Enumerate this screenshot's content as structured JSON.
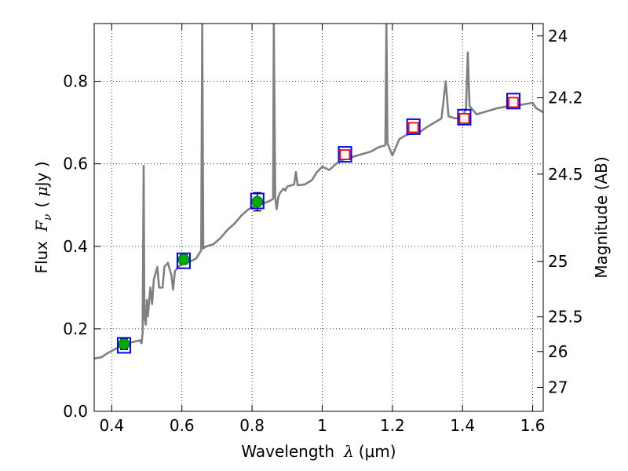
{
  "chart_data": {
    "type": "scatter",
    "xlabel": {
      "main": "Wavelength",
      "symbol": "λ",
      "unit": "(μm)"
    },
    "ylabel": {
      "main": "Flux",
      "symbol": "F",
      "sub": "ν",
      "unit_open": "( ",
      "unit_mu": "μ",
      "unit_rest": "Jy )"
    },
    "y2label": "Magnitude (AB)",
    "xlim": [
      0.35,
      1.63
    ],
    "ylim": [
      0.0,
      0.94
    ],
    "x_ticks": [
      0.4,
      0.6,
      0.8,
      1.0,
      1.2,
      1.4,
      1.6
    ],
    "x_tick_labels": [
      "0.4",
      "0.6",
      "0.8",
      "1",
      "1.2",
      "1.4",
      "1.6"
    ],
    "y_ticks": [
      0.0,
      0.2,
      0.4,
      0.6,
      0.8
    ],
    "y_tick_labels": [
      "0.0",
      "0.2",
      "0.4",
      "0.6",
      "0.8"
    ],
    "mag_ticks": [
      {
        "mag": "24",
        "flux": 0.91
      },
      {
        "mag": "24.2",
        "flux": 0.76
      },
      {
        "mag": "24.5",
        "flux": 0.575
      },
      {
        "mag": "25",
        "flux": 0.363
      },
      {
        "mag": "25.5",
        "flux": 0.229
      },
      {
        "mag": "26",
        "flux": 0.145
      },
      {
        "mag": "27",
        "flux": 0.058
      }
    ],
    "grid": true,
    "colors": {
      "spectrum": "#808080",
      "observed": "#00aa00",
      "model_box": "#0000ff",
      "upper": "#ff0000",
      "errorbar": "#000000"
    },
    "spectrum": [
      [
        0.35,
        0.128
      ],
      [
        0.37,
        0.131
      ],
      [
        0.39,
        0.142
      ],
      [
        0.41,
        0.151
      ],
      [
        0.43,
        0.16
      ],
      [
        0.45,
        0.166
      ],
      [
        0.47,
        0.17
      ],
      [
        0.48,
        0.172
      ],
      [
        0.485,
        0.165
      ],
      [
        0.488,
        0.19
      ],
      [
        0.491,
        0.595
      ],
      [
        0.493,
        0.23
      ],
      [
        0.497,
        0.21
      ],
      [
        0.5,
        0.27
      ],
      [
        0.503,
        0.23
      ],
      [
        0.51,
        0.3
      ],
      [
        0.515,
        0.26
      ],
      [
        0.52,
        0.32
      ],
      [
        0.53,
        0.35
      ],
      [
        0.535,
        0.3
      ],
      [
        0.545,
        0.3
      ],
      [
        0.55,
        0.35
      ],
      [
        0.56,
        0.36
      ],
      [
        0.57,
        0.33
      ],
      [
        0.575,
        0.295
      ],
      [
        0.58,
        0.34
      ],
      [
        0.59,
        0.35
      ],
      [
        0.6,
        0.358
      ],
      [
        0.62,
        0.362
      ],
      [
        0.64,
        0.37
      ],
      [
        0.655,
        0.39
      ],
      [
        0.658,
        0.94
      ],
      [
        0.661,
        0.395
      ],
      [
        0.67,
        0.4
      ],
      [
        0.69,
        0.405
      ],
      [
        0.71,
        0.42
      ],
      [
        0.73,
        0.44
      ],
      [
        0.75,
        0.455
      ],
      [
        0.77,
        0.475
      ],
      [
        0.79,
        0.49
      ],
      [
        0.81,
        0.498
      ],
      [
        0.83,
        0.503
      ],
      [
        0.85,
        0.51
      ],
      [
        0.86,
        0.515
      ],
      [
        0.862,
        0.94
      ],
      [
        0.866,
        0.52
      ],
      [
        0.87,
        0.49
      ],
      [
        0.875,
        0.52
      ],
      [
        0.88,
        0.53
      ],
      [
        0.89,
        0.54
      ],
      [
        0.895,
        0.535
      ],
      [
        0.9,
        0.545
      ],
      [
        0.92,
        0.55
      ],
      [
        0.925,
        0.58
      ],
      [
        0.93,
        0.548
      ],
      [
        0.95,
        0.55
      ],
      [
        0.97,
        0.56
      ],
      [
        0.985,
        0.58
      ],
      [
        1.0,
        0.593
      ],
      [
        1.02,
        0.585
      ],
      [
        1.04,
        0.6
      ],
      [
        1.06,
        0.61
      ],
      [
        1.08,
        0.615
      ],
      [
        1.1,
        0.62
      ],
      [
        1.12,
        0.625
      ],
      [
        1.14,
        0.63
      ],
      [
        1.16,
        0.64
      ],
      [
        1.18,
        0.645
      ],
      [
        1.183,
        0.94
      ],
      [
        1.186,
        0.65
      ],
      [
        1.2,
        0.62
      ],
      [
        1.21,
        0.64
      ],
      [
        1.22,
        0.66
      ],
      [
        1.24,
        0.67
      ],
      [
        1.26,
        0.675
      ],
      [
        1.28,
        0.678
      ],
      [
        1.3,
        0.69
      ],
      [
        1.32,
        0.7
      ],
      [
        1.34,
        0.71
      ],
      [
        1.352,
        0.8
      ],
      [
        1.36,
        0.715
      ],
      [
        1.38,
        0.71
      ],
      [
        1.4,
        0.712
      ],
      [
        1.41,
        0.735
      ],
      [
        1.415,
        0.87
      ],
      [
        1.42,
        0.74
      ],
      [
        1.44,
        0.72
      ],
      [
        1.46,
        0.725
      ],
      [
        1.48,
        0.73
      ],
      [
        1.5,
        0.735
      ],
      [
        1.52,
        0.738
      ],
      [
        1.54,
        0.74
      ],
      [
        1.56,
        0.742
      ],
      [
        1.58,
        0.745
      ],
      [
        1.6,
        0.748
      ],
      [
        1.61,
        0.735
      ],
      [
        1.63,
        0.725
      ]
    ],
    "observed_points": [
      {
        "x": 0.435,
        "y": 0.163,
        "err": 0.013
      },
      {
        "x": 0.605,
        "y": 0.368,
        "err": 0.011
      },
      {
        "x": 0.815,
        "y": 0.508,
        "err": 0.022
      }
    ],
    "model_boxes": [
      {
        "x": 0.435,
        "y": 0.16
      },
      {
        "x": 0.605,
        "y": 0.365
      },
      {
        "x": 0.815,
        "y": 0.51
      },
      {
        "x": 1.065,
        "y": 0.623
      },
      {
        "x": 1.26,
        "y": 0.69
      },
      {
        "x": 1.405,
        "y": 0.713
      },
      {
        "x": 1.545,
        "y": 0.752
      }
    ],
    "upper_squares": [
      {
        "x": 1.065,
        "y": 0.622
      },
      {
        "x": 1.26,
        "y": 0.688
      },
      {
        "x": 1.405,
        "y": 0.71
      },
      {
        "x": 1.545,
        "y": 0.749
      }
    ]
  }
}
